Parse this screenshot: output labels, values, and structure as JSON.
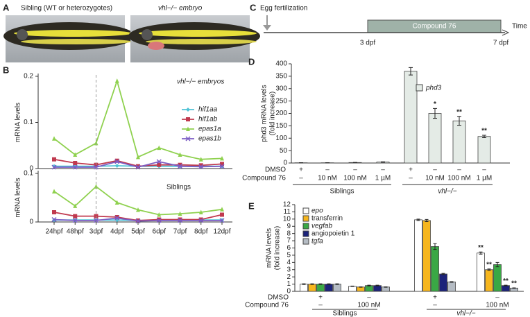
{
  "panel_labels": [
    "A",
    "B",
    "C",
    "D",
    "E"
  ],
  "panel_a": {
    "captions": [
      "Sibling (WT or heterozygotes)",
      "vhl−/− embryo"
    ]
  },
  "panel_c": {
    "start_label": "Egg fertilization",
    "treatment": "Compound 76",
    "axis_label": "Time",
    "marks": [
      "3 dpf",
      "7 dpf"
    ]
  },
  "chart_data": [
    {
      "type": "line",
      "title": "vhl−/− embryos",
      "y_label": "mRNA levels",
      "ylim": [
        0,
        0.2
      ],
      "yticks": [
        0,
        0.1,
        0.2
      ],
      "series": [
        {
          "name": "hif1aa",
          "color": "#4fc3d6",
          "marker": "diamond",
          "values": [
            0.005,
            0.005,
            0.005,
            0.006,
            0.005,
            0.005,
            0.005,
            0.005,
            0.005
          ]
        },
        {
          "name": "hif1ab",
          "color": "#c0394e",
          "marker": "square",
          "values": [
            0.02,
            0.012,
            0.008,
            0.017,
            0.005,
            0.008,
            0.008,
            0.007,
            0.01
          ]
        },
        {
          "name": "epas1a",
          "color": "#8fd14f",
          "marker": "triangle",
          "values": [
            0.065,
            0.03,
            0.055,
            0.19,
            0.025,
            0.045,
            0.03,
            0.02,
            0.022
          ]
        },
        {
          "name": "epas1b",
          "color": "#7b5cc4",
          "marker": "x",
          "values": [
            0.003,
            0.003,
            0.003,
            0.015,
            0.003,
            0.015,
            0.005,
            0.004,
            0.005
          ]
        }
      ]
    },
    {
      "type": "line",
      "title": "Siblings",
      "y_label": "mRNA levels",
      "categories": [
        "24hpf",
        "48hpf",
        "3dpf",
        "4dpf",
        "5dpf",
        "6dpf",
        "7dpf",
        "8dpf",
        "12dpf"
      ],
      "ylim": [
        0,
        0.1
      ],
      "yticks": [
        0,
        0.1
      ],
      "series": [
        {
          "color": "#4fc3d6",
          "marker": "diamond",
          "values": [
            0.004,
            0.004,
            0.004,
            0.004,
            0.003,
            0.004,
            0.004,
            0.004,
            0.004
          ]
        },
        {
          "color": "#c0394e",
          "marker": "square",
          "values": [
            0.02,
            0.012,
            0.012,
            0.01,
            0.003,
            0.005,
            0.005,
            0.005,
            0.015
          ]
        },
        {
          "color": "#8fd14f",
          "marker": "triangle",
          "values": [
            0.063,
            0.033,
            0.073,
            0.04,
            0.025,
            0.015,
            0.017,
            0.02,
            0.026
          ]
        },
        {
          "color": "#7b5cc4",
          "marker": "x",
          "values": [
            0.005,
            0.003,
            0.003,
            0.008,
            0.002,
            0.003,
            0.003,
            0.003,
            0.003
          ]
        }
      ]
    },
    {
      "type": "bar",
      "y_label": [
        "phd3 mRNA levels",
        "(fold increase)"
      ],
      "ylim": [
        0,
        400
      ],
      "yticks": [
        0,
        50,
        100,
        150,
        200,
        250,
        300,
        350,
        400
      ],
      "series": [
        {
          "name": "phd3",
          "color": "#e4ebe6",
          "values": [
            1,
            1,
            2,
            4,
            370,
            200,
            170,
            107
          ],
          "errors": [
            0.5,
            0.5,
            0.5,
            1,
            15,
            20,
            18,
            5
          ],
          "annotations": [
            null,
            null,
            null,
            null,
            null,
            "*",
            "**",
            "**"
          ]
        }
      ],
      "conditions": [
        {
          "label": "DMSO",
          "values": [
            "+",
            "–",
            "–",
            "–",
            "+",
            "–",
            "–",
            "–"
          ]
        },
        {
          "label": "Compound 76",
          "values": [
            "–",
            "10 nM",
            "100 nM",
            "1 µM",
            "–",
            "10 nM",
            "100 nM",
            "1 µM"
          ]
        }
      ],
      "groups": [
        "Siblings",
        "vhl−/−"
      ]
    },
    {
      "type": "grouped_bar",
      "y_label": [
        "mRNA levels",
        "(fold increase)"
      ],
      "ylim": [
        0,
        12
      ],
      "yticks": [
        0,
        1,
        2,
        3,
        4,
        5,
        6,
        7,
        8,
        9,
        10,
        11,
        12
      ],
      "series": [
        {
          "name": "epo",
          "color": "#ffffff",
          "values": [
            1,
            0.7,
            9.9,
            5.3
          ],
          "errors": [
            0.05,
            0.03,
            0.1,
            0.15
          ],
          "annotations": [
            null,
            null,
            null,
            "**"
          ]
        },
        {
          "name": "transferrin",
          "color": "#f6b61e",
          "values": [
            1,
            0.6,
            9.8,
            3.0
          ],
          "errors": [
            0.05,
            0.03,
            0.15,
            0.1
          ],
          "annotations": [
            null,
            null,
            null,
            "**"
          ]
        },
        {
          "name": "vegfab",
          "color": "#3aa845",
          "values": [
            1,
            0.8,
            6.2,
            3.7
          ],
          "errors": [
            0.05,
            0.05,
            0.4,
            0.3
          ],
          "annotations": [
            null,
            null,
            null,
            null
          ]
        },
        {
          "name": "angiopoietin 1",
          "color": "#1c237a",
          "values": [
            1,
            0.8,
            2.4,
            0.8
          ],
          "errors": [
            0.05,
            0.05,
            0.08,
            0.05
          ],
          "annotations": [
            null,
            null,
            null,
            "**"
          ]
        },
        {
          "name": "tgfa",
          "color": "#b5bcc4",
          "values": [
            1,
            0.6,
            1.3,
            0.45
          ],
          "errors": [
            0.05,
            0.03,
            0.05,
            0.03
          ],
          "annotations": [
            null,
            null,
            null,
            "**"
          ]
        }
      ],
      "conditions": [
        {
          "label": "DMSO",
          "values": [
            "+",
            "–",
            "+",
            "–"
          ]
        },
        {
          "label": "Compound 76",
          "values": [
            "–",
            "100 nM",
            "–",
            "100 nM"
          ]
        }
      ],
      "groups": [
        "Siblings",
        "vhl−/−"
      ]
    }
  ]
}
